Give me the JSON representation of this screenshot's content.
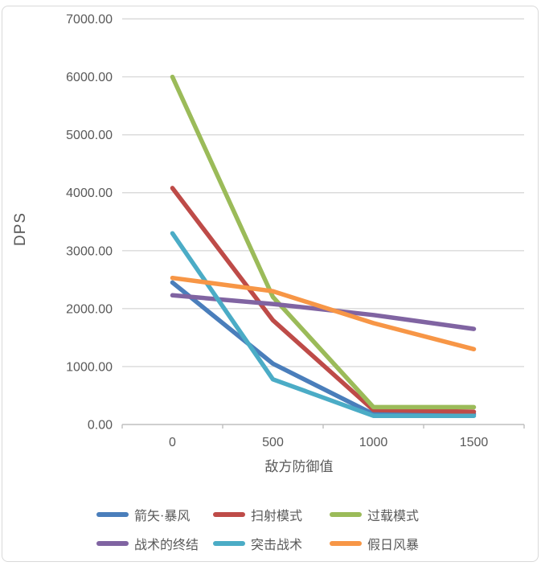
{
  "chart_data": {
    "type": "line",
    "title": "",
    "xlabel": "敌方防御值",
    "ylabel": "DPS",
    "categories": [
      "0",
      "500",
      "1000",
      "1500"
    ],
    "x_values": [
      0,
      500,
      1000,
      1500
    ],
    "y_ticks": [
      "0.00",
      "1000.00",
      "2000.00",
      "3000.00",
      "4000.00",
      "5000.00",
      "6000.00",
      "7000.00"
    ],
    "ylim": [
      0,
      7000
    ],
    "grid": true,
    "legend_position": "bottom",
    "series": [
      {
        "name": "箭矢·暴风",
        "color": "#4A7EBB",
        "values": [
          2450,
          1050,
          180,
          180
        ]
      },
      {
        "name": "扫射模式",
        "color": "#BE4B48",
        "values": [
          4080,
          1800,
          250,
          220
        ]
      },
      {
        "name": "过载模式",
        "color": "#9BBB59",
        "values": [
          6000,
          2200,
          300,
          300
        ]
      },
      {
        "name": "战术的终结",
        "color": "#8064A2",
        "values": [
          2230,
          2080,
          1890,
          1650
        ]
      },
      {
        "name": "突击战术",
        "color": "#4BACC6",
        "values": [
          3300,
          780,
          150,
          150
        ]
      },
      {
        "name": "假日风暴",
        "color": "#F79646",
        "values": [
          2530,
          2300,
          1750,
          1300
        ]
      }
    ]
  },
  "colors": {
    "background": "#FFFFFF",
    "gridline": "#D9D9D9",
    "axis_line": "#BFBFBF",
    "text": "#595959",
    "card_border": "#D9D9D9"
  }
}
